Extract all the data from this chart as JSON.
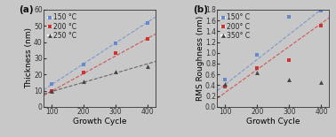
{
  "panel_a": {
    "title": "(a)",
    "xlabel": "Growth Cycle",
    "ylabel": "Thickness (nm)",
    "xlim": [
      75,
      425
    ],
    "ylim": [
      0,
      60
    ],
    "yticks": [
      0,
      10,
      20,
      30,
      40,
      50,
      60
    ],
    "xticks": [
      100,
      200,
      300,
      400
    ],
    "series": [
      {
        "label": "150 °C",
        "color": "#6688cc",
        "marker": "s",
        "x": [
          100,
          200,
          300,
          400
        ],
        "y": [
          14,
          26,
          39,
          52
        ],
        "fit_x": [
          75,
          425
        ],
        "fit_y": [
          10.5,
          55.5
        ]
      },
      {
        "label": "200 °C",
        "color": "#cc3333",
        "marker": "s",
        "x": [
          100,
          200,
          300,
          400
        ],
        "y": [
          10,
          21,
          33,
          42
        ],
        "fit_x": [
          75,
          425
        ],
        "fit_y": [
          7.0,
          45.0
        ]
      },
      {
        "label": "250 °C",
        "color": "#444444",
        "marker": "^",
        "x": [
          100,
          200,
          300,
          400
        ],
        "y": [
          10,
          16,
          22,
          25
        ],
        "fit_x": [
          75,
          425
        ],
        "fit_y": [
          8.0,
          28.0
        ]
      }
    ]
  },
  "panel_b": {
    "title": "(b)",
    "xlabel": "Growth Cycle",
    "ylabel": "RMS Roughness (nm)",
    "xlim": [
      75,
      425
    ],
    "ylim": [
      0.0,
      1.8
    ],
    "yticks": [
      0.0,
      0.2,
      0.4,
      0.6,
      0.8,
      1.0,
      1.2,
      1.4,
      1.6,
      1.8
    ],
    "xticks": [
      100,
      200,
      300,
      400
    ],
    "series": [
      {
        "label": "150° C",
        "color": "#6688cc",
        "marker": "s",
        "x": [
          100,
          200,
          300,
          400
        ],
        "y": [
          0.5,
          0.97,
          1.67,
          1.78
        ],
        "fit_x": [
          75,
          425
        ],
        "fit_y": [
          0.3,
          1.92
        ]
      },
      {
        "label": "200° C",
        "color": "#cc3333",
        "marker": "s",
        "x": [
          100,
          200,
          300,
          400
        ],
        "y": [
          0.38,
          0.72,
          0.86,
          1.5
        ],
        "fit_x": [
          75,
          425
        ],
        "fit_y": [
          0.16,
          1.65
        ]
      },
      {
        "label": "350° C",
        "color": "#444444",
        "marker": "^",
        "x": [
          100,
          200,
          300,
          400
        ],
        "y": [
          0.42,
          0.63,
          0.5,
          0.46
        ],
        "fit_x": null,
        "fit_y": null
      }
    ]
  },
  "background_color": "#c8c8c8",
  "axes_color": "#c8c8c8",
  "font_size": 6.5,
  "legend_font_size": 5.5,
  "marker_size": 3.5,
  "linewidth": 0.8
}
